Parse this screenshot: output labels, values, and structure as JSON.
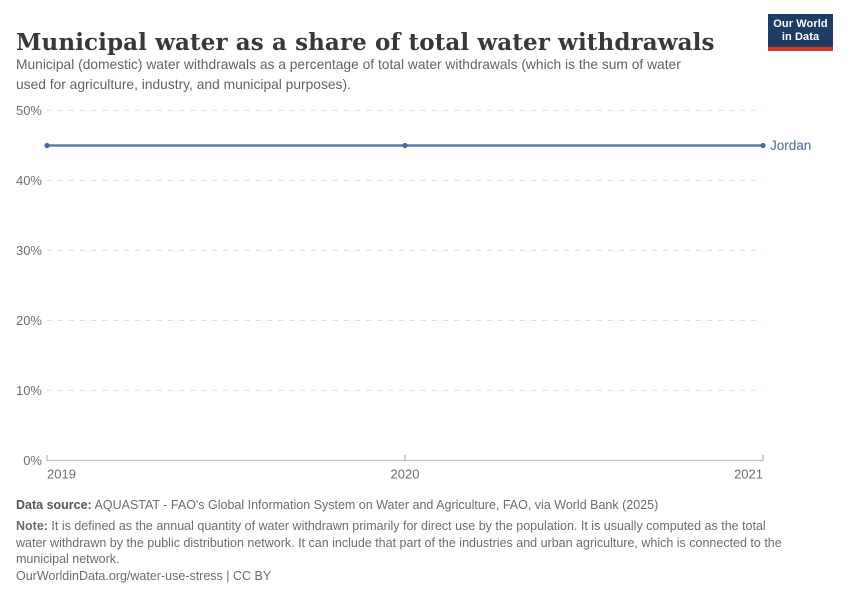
{
  "header": {
    "title": "Municipal water as a share of total water withdrawals",
    "subtitle_lines": [
      "Municipal (domestic) water withdrawals as a percentage of total water withdrawals (which is the sum of water",
      "used for agriculture, industry, and municipal purposes)."
    ],
    "logo": {
      "line1": "Our World",
      "line2": "in Data"
    }
  },
  "chart_data": {
    "type": "line",
    "title": "Municipal water as a share of total water withdrawals",
    "x": [
      2019,
      2020,
      2021
    ],
    "xtick_labels": [
      "2019",
      "2020",
      "2021"
    ],
    "ytick_values": [
      0,
      10,
      20,
      30,
      40,
      50
    ],
    "ytick_labels": [
      "0%",
      "10%",
      "20%",
      "30%",
      "40%",
      "50%"
    ],
    "ylim": [
      0,
      50
    ],
    "xlabel": "",
    "ylabel": "",
    "grid": "horizontal-dashed",
    "legend_position": "end-of-line-label",
    "series": [
      {
        "name": "Jordan",
        "values": [
          45,
          45,
          45
        ],
        "color": "#4c6a9c",
        "line_color": "#5b7ba7"
      }
    ]
  },
  "colors": {
    "accent_blue": "#4c6a9c",
    "line_blue": "#5b7ba7",
    "gridline": "#e0e0e0",
    "axis": "#c0c0c0",
    "tick": "#a3a3a3",
    "logo_bg": "#1d3d63",
    "logo_bar": "#d7382e"
  },
  "footer": {
    "data_source_label": "Data source:",
    "data_source_text": " AQUASTAT - FAO's Global Information System on Water and Agriculture, FAO, via World Bank (2025)",
    "note_label": "Note:",
    "note_line1_rest": " It is defined as the annual quantity of water withdrawn primarily for direct use by the population. It is usually computed as the total",
    "note_lines_rest": [
      "water withdrawn by the public distribution network. It can include that part of the industries and urban agriculture, which is connected to the",
      "municipal network."
    ],
    "citation": "OurWorldinData.org/water-use-stress | CC BY"
  }
}
